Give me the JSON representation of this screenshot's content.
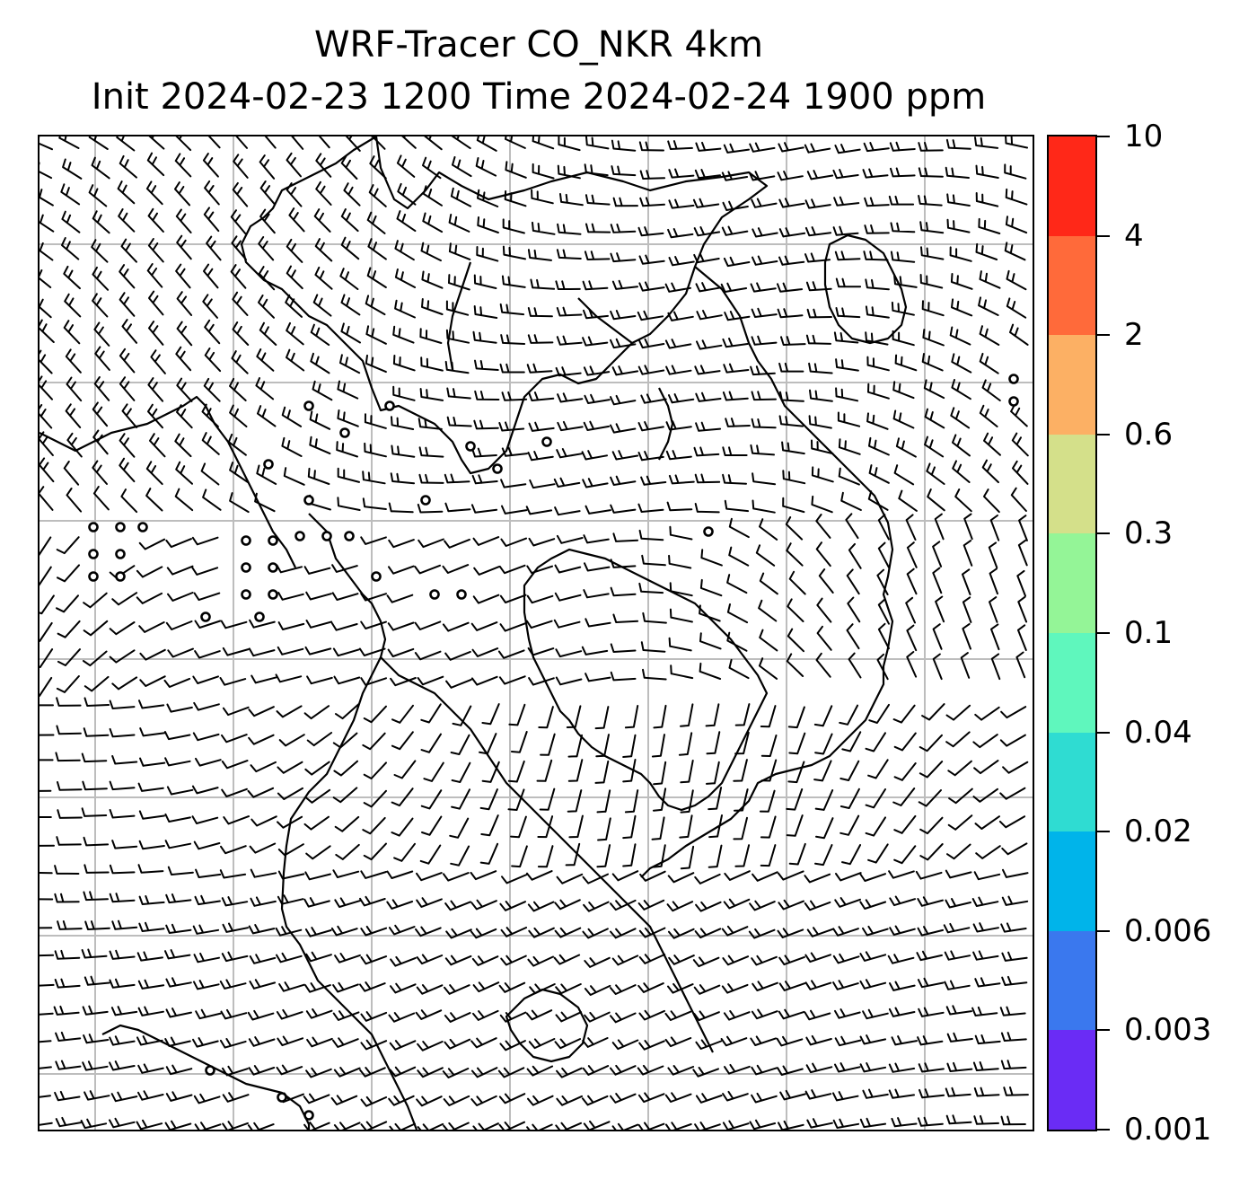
{
  "title": {
    "line1": "WRF-Tracer CO_NKR 4km",
    "line2": "Init 2024-02-23 1200 Time 2024-02-24 1900 ppm"
  },
  "colorbar": {
    "levels": [
      "0.001",
      "0.003",
      "0.006",
      "0.02",
      "0.04",
      "0.1",
      "0.3",
      "0.6",
      "2",
      "4",
      "10"
    ],
    "colors": [
      "#6a2cf5",
      "#3a78ee",
      "#00b4ea",
      "#2fdcd2",
      "#5ff7bd",
      "#94f597",
      "#d4e08a",
      "#fcb064",
      "#ff6a3a",
      "#ff2818"
    ]
  },
  "map": {
    "gridlines": true,
    "grid_color": "#bdbdbd",
    "coastline_color": "#000000",
    "barb_color": "#000000",
    "symbols": [
      "wind-barbs",
      "calm-circles",
      "coastlines",
      "graticule"
    ]
  }
}
